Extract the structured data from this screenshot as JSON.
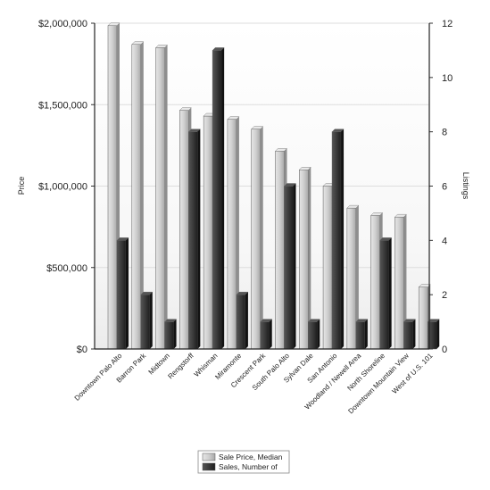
{
  "chart_data": {
    "type": "bar",
    "title": "",
    "xlabel": "",
    "ylabel": "Price",
    "y2label": "Listings",
    "ylim": [
      0,
      2000000
    ],
    "y2lim": [
      0,
      12
    ],
    "yticks": [
      "$0",
      "$500,000",
      "$1,000,000",
      "$1,500,000",
      "$2,000,000"
    ],
    "y2ticks": [
      "0",
      "2",
      "4",
      "6",
      "8",
      "10",
      "12"
    ],
    "grid": true,
    "legend_position": "bottom-center",
    "categories": [
      "Downtown Palo Alto",
      "Barron Park",
      "Midtown",
      "Rengstorff",
      "Whisman",
      "Miramonte",
      "Crescent Park",
      "South Palo Alto",
      "Sylvan Dale",
      "San Antonio",
      "Woodland / Newell Area",
      "North Shoreline",
      "Downtown Mountain View",
      "West of U.S. 101"
    ],
    "series": [
      {
        "name": "Sale Price, Median",
        "axis": "left",
        "color": "#c8c8c8",
        "values": [
          1985000,
          1870000,
          1850000,
          1465000,
          1430000,
          1410000,
          1350000,
          1215000,
          1100000,
          1000000,
          865000,
          820000,
          810000,
          380000
        ]
      },
      {
        "name": "Sales, Number of",
        "axis": "right",
        "color": "#3a3a3a",
        "values": [
          4,
          2,
          1,
          8,
          11,
          2,
          1,
          6,
          1,
          8,
          1,
          4,
          1,
          1
        ]
      }
    ]
  }
}
